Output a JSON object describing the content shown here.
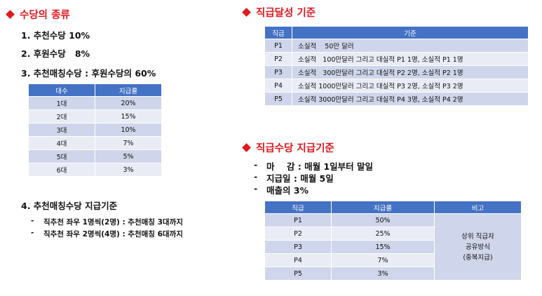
{
  "left": {
    "title": "수당의 종류",
    "items": [
      "1. 추천수당 10%",
      "2. 후원수당   8%",
      "3. 추천매칭수당 : 후원수당의 60%"
    ],
    "matching_table": {
      "headers": [
        "대수",
        "지급률"
      ],
      "rows": [
        [
          "1대",
          "20%"
        ],
        [
          "2대",
          "15%"
        ],
        [
          "3대",
          "10%"
        ],
        [
          "4대",
          "7%"
        ],
        [
          "5대",
          "5%"
        ],
        [
          "6대",
          "3%"
        ]
      ]
    },
    "criteria_title": "4. 추천매칭수당 지급기준",
    "criteria": [
      "직추천 좌우 1명씩(2명) : 추천매칭 3대까지",
      "직추천 좌우 2명씩(4명) : 추천매칭 6대까지"
    ],
    "dash": "-"
  },
  "right": {
    "rank_title": "직급달성 기준",
    "rank_table": {
      "headers": [
        "직급",
        "기준"
      ],
      "rows": [
        [
          "P1",
          "소실적    50만 달러"
        ],
        [
          "P2",
          "소실적   100만달러 그리고 대실적 P1 1명, 소실적 P1 1명"
        ],
        [
          "P3",
          "소실적   300만달러 그리고 대실적 P2 2명, 소실적 P2 1명"
        ],
        [
          "P4",
          "소실적 1000만달러 그리고 대실적 P3 2명, 소실적 P3 2명"
        ],
        [
          "P5",
          "소실적 3000만달러 그리고 대실적 P4 3명, 소실적 P4 2명"
        ]
      ]
    },
    "pay_title": "직급수당 지급기준",
    "pay_items": [
      "마    감 : 매월 1일부터 말일",
      "지급일 : 매월 5일",
      "매출의 3%"
    ],
    "pay_dashes": [
      "-",
      "-",
      "-"
    ],
    "pay_table": {
      "headers": [
        "직급",
        "지급률",
        "비고"
      ],
      "rows": [
        [
          "P1",
          "50%"
        ],
        [
          "P2",
          "25%"
        ],
        [
          "P3",
          "15%"
        ],
        [
          "P4",
          "7%"
        ],
        [
          "P5",
          "3%"
        ]
      ],
      "note_lines": [
        "상위 직급자",
        "공유방식",
        "(중복지급)"
      ]
    }
  },
  "colors": {
    "title_red": "#e0191f",
    "header_blue": "#4472c4",
    "row_dark": "#cfd5ea",
    "row_light": "#e9ebf5"
  },
  "icons": [
    "red-diamond-bullet-icon"
  ]
}
